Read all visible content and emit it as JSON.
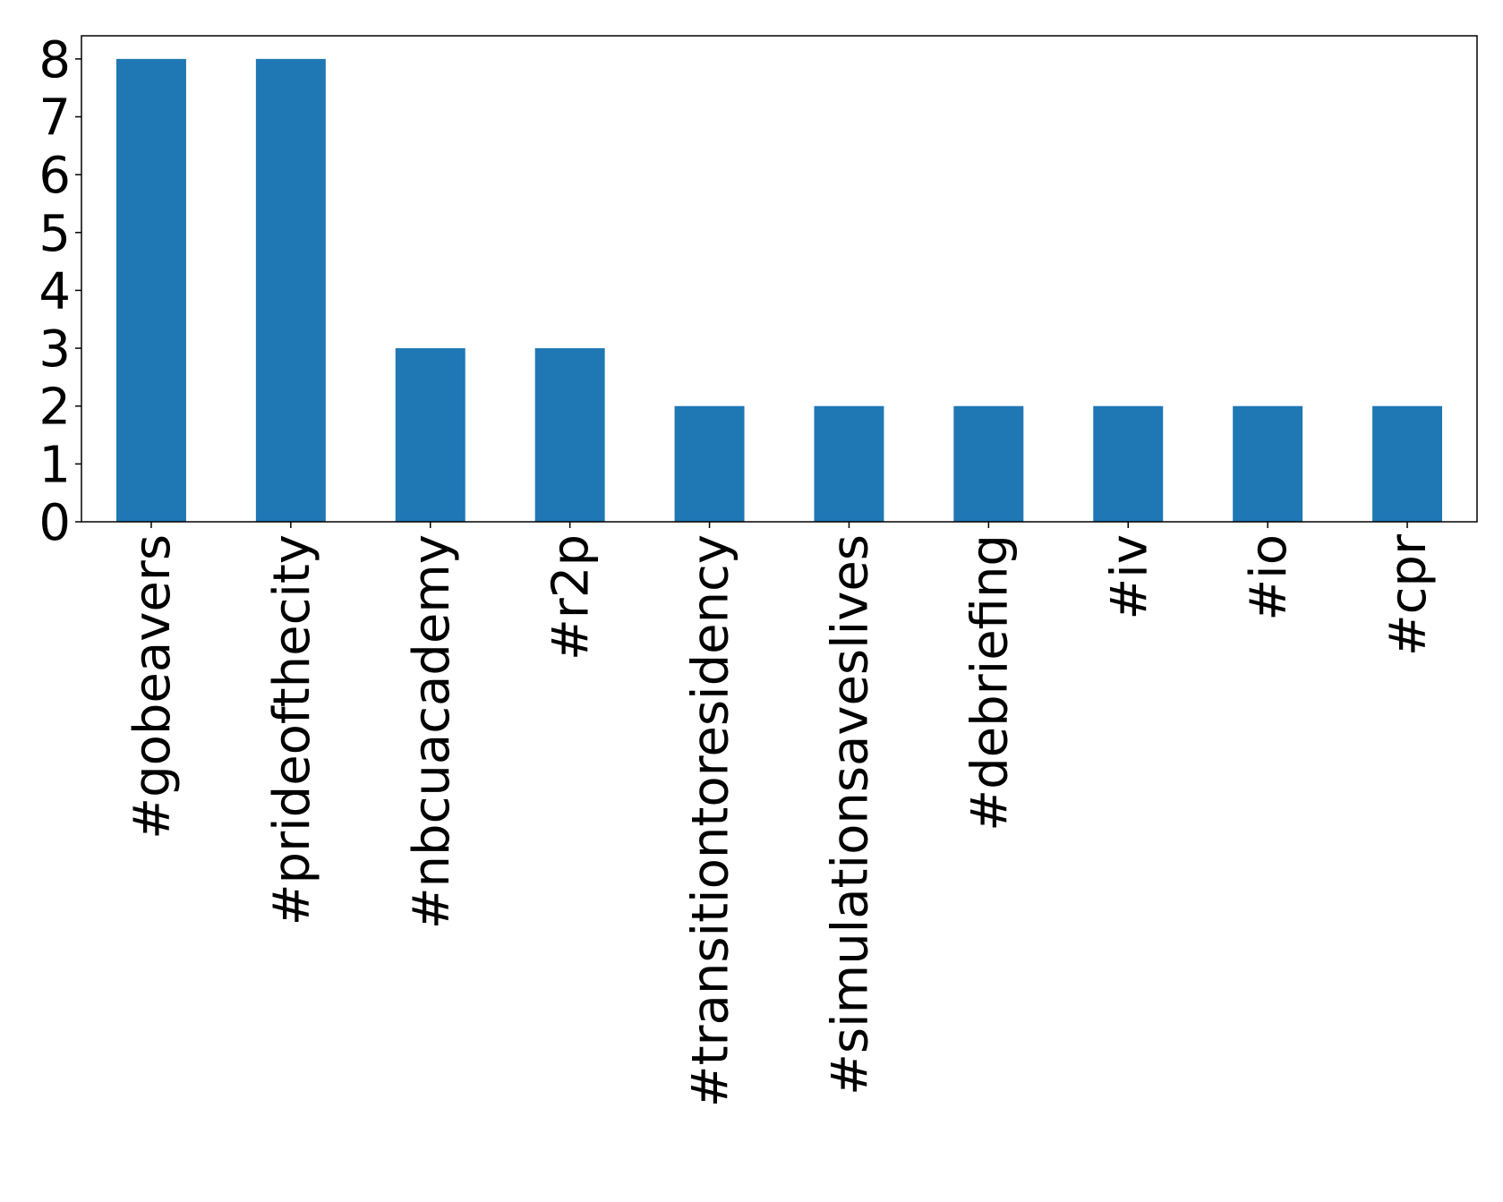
{
  "chart_data": {
    "type": "bar",
    "categories": [
      "#gobeavers",
      "#prideofthecity",
      "#nbcuacademy",
      "#r2p",
      "#transitiontoresidency",
      "#simulationsaveslives",
      "#debriefing",
      "#iv",
      "#io",
      "#cpr"
    ],
    "values": [
      8,
      8,
      3,
      3,
      2,
      2,
      2,
      2,
      2,
      2
    ],
    "yticks": [
      0,
      1,
      2,
      3,
      4,
      5,
      6,
      7,
      8
    ],
    "ylim": [
      0,
      8.4
    ],
    "grid": false,
    "bar_color": "#1f77b4",
    "title": "",
    "xlabel": "",
    "ylabel": ""
  }
}
